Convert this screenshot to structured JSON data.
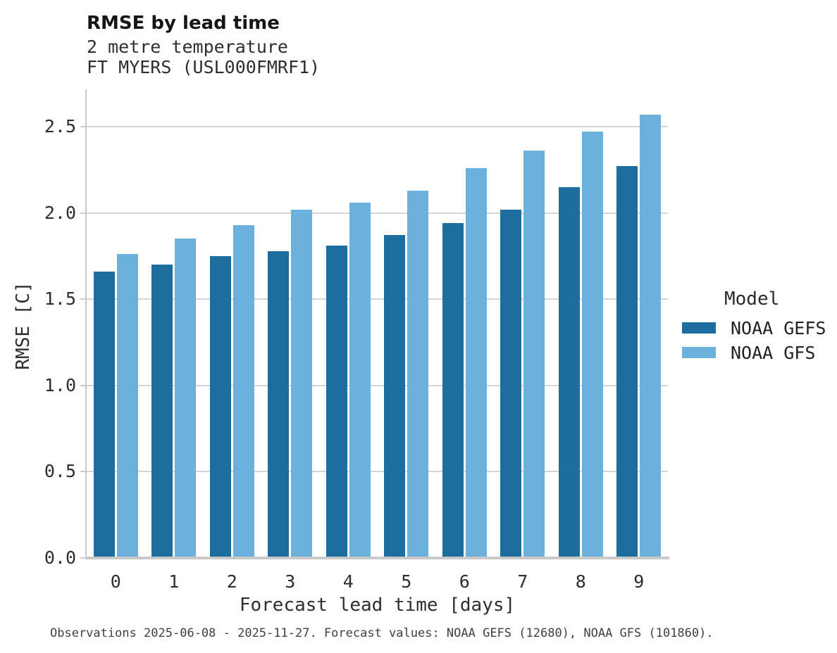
{
  "chart_data": {
    "type": "bar",
    "title": "RMSE by lead time",
    "subtitle": [
      "2 metre temperature",
      "FT MYERS (USL000FMRF1)"
    ],
    "xlabel": "Forecast lead time [days]",
    "ylabel": "RMSE [C]",
    "categories": [
      "0",
      "1",
      "2",
      "3",
      "4",
      "5",
      "6",
      "7",
      "8",
      "9"
    ],
    "series": [
      {
        "name": "NOAA GEFS",
        "color": "#1d6d9e",
        "values": [
          1.66,
          1.7,
          1.75,
          1.78,
          1.81,
          1.87,
          1.94,
          2.02,
          2.15,
          2.27
        ]
      },
      {
        "name": "NOAA GFS",
        "color": "#6cb1db",
        "values": [
          1.76,
          1.85,
          1.93,
          2.02,
          2.06,
          2.13,
          2.26,
          2.36,
          2.47,
          2.57
        ]
      }
    ],
    "y_ticks": [
      0.0,
      0.5,
      1.0,
      1.5,
      2.0,
      2.5
    ],
    "y_tick_labels": [
      "0.0",
      "0.5",
      "1.0",
      "1.5",
      "2.0",
      "2.5"
    ],
    "ylim": [
      0,
      2.72
    ],
    "grid": true,
    "legend_position": "right",
    "legend_title": "Model"
  },
  "footnote": "Observations 2025-06-08 - 2025-11-27. Forecast values: NOAA GEFS (12680), NOAA GFS (101860)."
}
